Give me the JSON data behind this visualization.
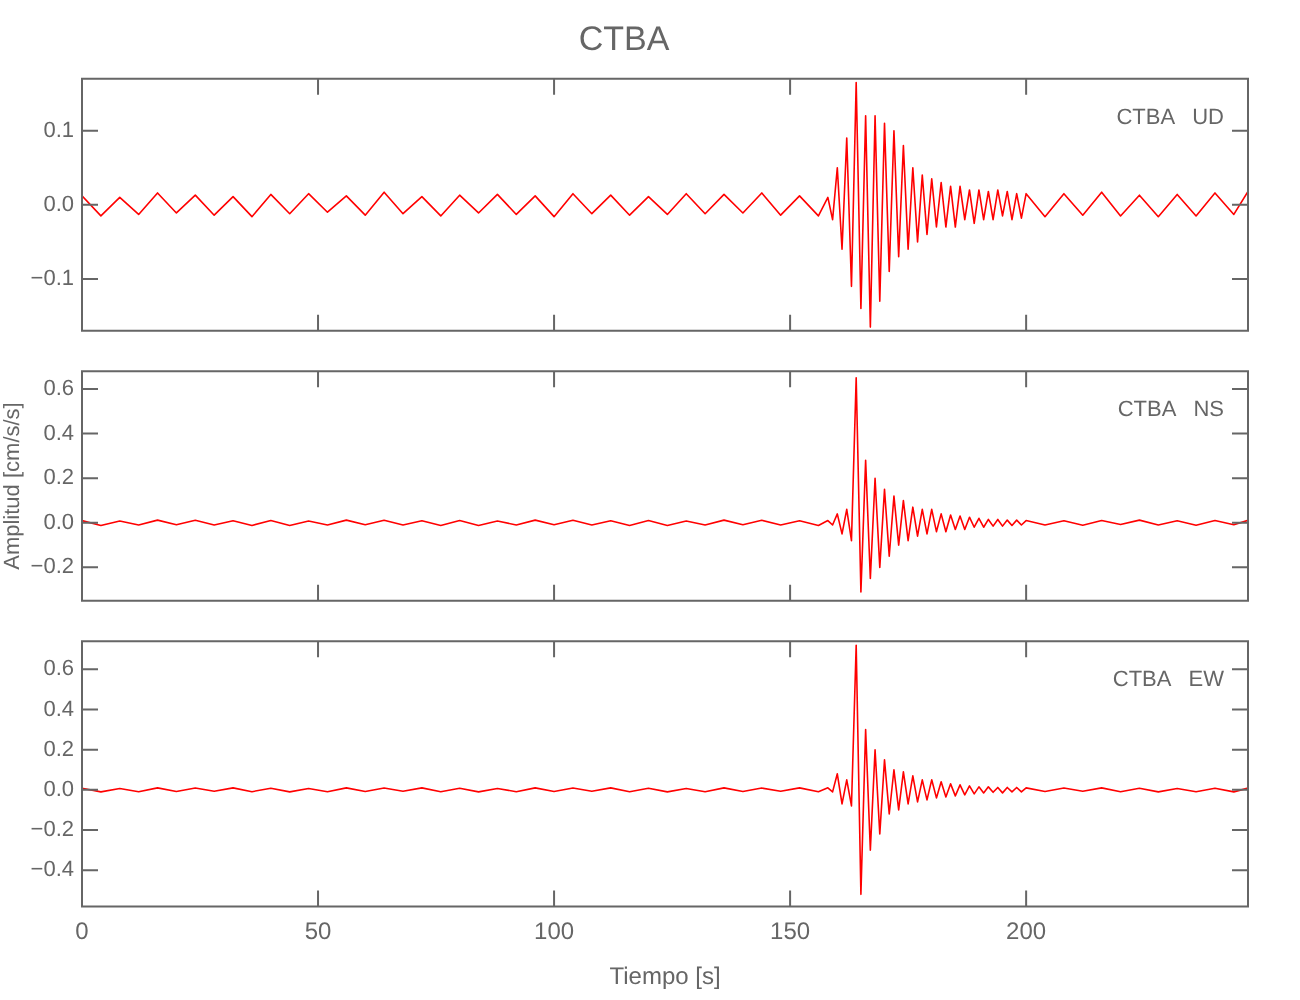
{
  "chart_data": [
    {
      "type": "line",
      "title": "CTBA",
      "annotations": [
        "CTBA   UD"
      ],
      "tick_labels": "y",
      "x": [
        0,
        4,
        8,
        12,
        16,
        20,
        24,
        28,
        32,
        36,
        40,
        44,
        48,
        52,
        56,
        60,
        64,
        68,
        72,
        76,
        80,
        84,
        88,
        92,
        96,
        100,
        104,
        108,
        112,
        116,
        120,
        124,
        128,
        132,
        136,
        140,
        144,
        148,
        152,
        156,
        158,
        159,
        160,
        161,
        162,
        163,
        164,
        165,
        166,
        167,
        168,
        169,
        170,
        171,
        172,
        173,
        174,
        175,
        176,
        177,
        178,
        179,
        180,
        181,
        182,
        183,
        184,
        185,
        186,
        187,
        188,
        189,
        190,
        191,
        192,
        193,
        194,
        195,
        196,
        197,
        198,
        199,
        200,
        204,
        208,
        212,
        216,
        220,
        224,
        228,
        232,
        236,
        240,
        244,
        247
      ],
      "series": [
        {
          "color": "#ff0000",
          "values": [
            0.012,
            -0.015,
            0.01,
            -0.013,
            0.016,
            -0.011,
            0.013,
            -0.014,
            0.011,
            -0.016,
            0.014,
            -0.012,
            0.015,
            -0.01,
            0.012,
            -0.014,
            0.017,
            -0.012,
            0.011,
            -0.015,
            0.013,
            -0.011,
            0.014,
            -0.013,
            0.012,
            -0.016,
            0.015,
            -0.012,
            0.013,
            -0.014,
            0.011,
            -0.013,
            0.015,
            -0.012,
            0.014,
            -0.011,
            0.016,
            -0.014,
            0.012,
            -0.015,
            0.01,
            -0.02,
            0.05,
            -0.06,
            0.09,
            -0.11,
            0.165,
            -0.14,
            0.12,
            -0.165,
            0.12,
            -0.13,
            0.11,
            -0.09,
            0.1,
            -0.07,
            0.08,
            -0.06,
            0.05,
            -0.05,
            0.04,
            -0.04,
            0.035,
            -0.03,
            0.03,
            -0.03,
            0.025,
            -0.03,
            0.025,
            -0.02,
            0.02,
            -0.025,
            0.02,
            -0.02,
            0.018,
            -0.02,
            0.02,
            -0.015,
            0.018,
            -0.02,
            0.015,
            -0.018,
            0.015,
            -0.016,
            0.015,
            -0.014,
            0.017,
            -0.015,
            0.013,
            -0.016,
            0.014,
            -0.015,
            0.016,
            -0.013,
            0.018
          ]
        }
      ],
      "xlim": [
        0,
        247
      ],
      "xticks": [
        0,
        50,
        100,
        150,
        200
      ],
      "ylim": [
        -0.17,
        0.17
      ],
      "yticks": [
        {
          "value": -0.1,
          "label": "−0.1"
        },
        {
          "value": 0,
          "label": "0.0"
        },
        0.1
      ]
    },
    {
      "type": "line",
      "annotations": [
        "CTBA   NS"
      ],
      "tick_labels": "y",
      "ylabel": "Amplitud [cm/s/s]",
      "x": [
        0,
        4,
        8,
        12,
        16,
        20,
        24,
        28,
        32,
        36,
        40,
        44,
        48,
        52,
        56,
        60,
        64,
        68,
        72,
        76,
        80,
        84,
        88,
        92,
        96,
        100,
        104,
        108,
        112,
        116,
        120,
        124,
        128,
        132,
        136,
        140,
        144,
        148,
        152,
        156,
        158,
        159,
        160,
        161,
        162,
        163,
        164,
        165,
        166,
        167,
        168,
        169,
        170,
        171,
        172,
        173,
        174,
        175,
        176,
        177,
        178,
        179,
        180,
        181,
        182,
        183,
        184,
        185,
        186,
        187,
        188,
        189,
        190,
        191,
        192,
        193,
        194,
        195,
        196,
        197,
        198,
        199,
        200,
        204,
        208,
        212,
        216,
        220,
        224,
        228,
        232,
        236,
        240,
        244,
        247
      ],
      "series": [
        {
          "color": "#ff0000",
          "values": [
            0.01,
            -0.012,
            0.008,
            -0.01,
            0.012,
            -0.009,
            0.011,
            -0.01,
            0.009,
            -0.012,
            0.01,
            -0.012,
            0.008,
            -0.01,
            0.012,
            -0.009,
            0.011,
            -0.01,
            0.009,
            -0.012,
            0.01,
            -0.012,
            0.008,
            -0.01,
            0.012,
            -0.009,
            0.011,
            -0.01,
            0.009,
            -0.012,
            0.01,
            -0.012,
            0.008,
            -0.01,
            0.012,
            -0.009,
            0.011,
            -0.01,
            0.009,
            -0.012,
            0.01,
            -0.01,
            0.04,
            -0.05,
            0.06,
            -0.08,
            0.65,
            -0.31,
            0.28,
            -0.25,
            0.2,
            -0.2,
            0.15,
            -0.15,
            0.12,
            -0.1,
            0.1,
            -0.08,
            0.07,
            -0.06,
            0.06,
            -0.05,
            0.06,
            -0.04,
            0.04,
            -0.04,
            0.035,
            -0.03,
            0.03,
            -0.03,
            0.025,
            -0.02,
            0.02,
            -0.02,
            0.015,
            -0.015,
            0.015,
            -0.015,
            0.012,
            -0.012,
            0.012,
            -0.01,
            0.01,
            -0.01,
            0.009,
            -0.011,
            0.01,
            -0.008,
            0.012,
            -0.01,
            0.009,
            -0.011,
            0.01,
            -0.009,
            0.011
          ]
        }
      ],
      "xlim": [
        0,
        247
      ],
      "xticks": [
        0,
        50,
        100,
        150,
        200
      ],
      "ylim": [
        -0.35,
        0.68
      ],
      "yticks": [
        {
          "value": -0.2,
          "label": "−0.2"
        },
        {
          "value": 0,
          "label": "0.0"
        },
        0.2,
        0.4,
        0.6
      ]
    },
    {
      "type": "line",
      "annotations": [
        "CTBA   EW"
      ],
      "xlabel": "Tiempo [s]",
      "x": [
        0,
        4,
        8,
        12,
        16,
        20,
        24,
        28,
        32,
        36,
        40,
        44,
        48,
        52,
        56,
        60,
        64,
        68,
        72,
        76,
        80,
        84,
        88,
        92,
        96,
        100,
        104,
        108,
        112,
        116,
        120,
        124,
        128,
        132,
        136,
        140,
        144,
        148,
        152,
        156,
        158,
        159,
        160,
        161,
        162,
        163,
        164,
        165,
        166,
        167,
        168,
        169,
        170,
        171,
        172,
        173,
        174,
        175,
        176,
        177,
        178,
        179,
        180,
        181,
        182,
        183,
        184,
        185,
        186,
        187,
        188,
        189,
        190,
        191,
        192,
        193,
        194,
        195,
        196,
        197,
        198,
        199,
        200,
        204,
        208,
        212,
        216,
        220,
        224,
        228,
        232,
        236,
        240,
        244,
        247
      ],
      "series": [
        {
          "color": "#ff0000",
          "values": [
            0.008,
            -0.01,
            0.007,
            -0.009,
            0.01,
            -0.008,
            0.009,
            -0.007,
            0.01,
            -0.009,
            0.008,
            -0.01,
            0.007,
            -0.009,
            0.01,
            -0.008,
            0.009,
            -0.007,
            0.01,
            -0.009,
            0.008,
            -0.01,
            0.007,
            -0.009,
            0.01,
            -0.008,
            0.009,
            -0.007,
            0.01,
            -0.009,
            0.008,
            -0.01,
            0.007,
            -0.009,
            0.01,
            -0.008,
            0.009,
            -0.007,
            0.01,
            -0.009,
            0.01,
            -0.01,
            0.08,
            -0.07,
            0.05,
            -0.08,
            0.72,
            -0.52,
            0.3,
            -0.3,
            0.2,
            -0.22,
            0.15,
            -0.12,
            0.1,
            -0.1,
            0.09,
            -0.07,
            0.07,
            -0.06,
            0.05,
            -0.05,
            0.05,
            -0.04,
            0.04,
            -0.035,
            0.03,
            -0.03,
            0.025,
            -0.025,
            0.02,
            -0.02,
            0.015,
            -0.015,
            0.015,
            -0.012,
            0.012,
            -0.015,
            0.012,
            -0.01,
            0.012,
            -0.01,
            0.01,
            -0.008,
            0.009,
            -0.007,
            0.01,
            -0.009,
            0.008,
            -0.01,
            0.007,
            -0.009,
            0.008,
            -0.01,
            0.009
          ]
        }
      ],
      "xlim": [
        0,
        247
      ],
      "xticks": [
        0,
        50,
        100,
        150,
        200
      ],
      "ylim": [
        -0.58,
        0.74
      ],
      "yticks": [
        {
          "value": -0.4,
          "label": "−0.4"
        },
        {
          "value": -0.2,
          "label": "−0.2"
        },
        {
          "value": 0,
          "label": "0.0"
        },
        0.2,
        0.4,
        0.6
      ]
    }
  ]
}
